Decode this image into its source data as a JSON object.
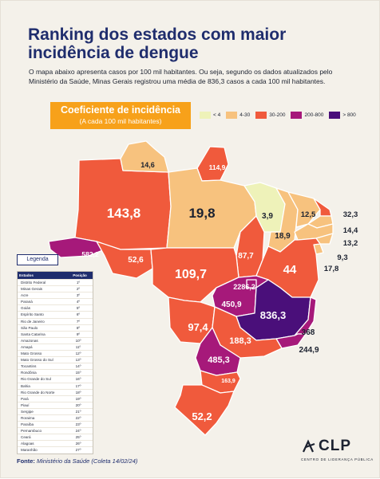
{
  "header": {
    "title_line1": "Ranking dos estados com maior",
    "title_line2": "incidência de dengue",
    "intro_line1": "O mapa abaixo apresenta casos por 100 mil habitantes. Ou seja, segundo os dados atualizados pelo",
    "intro_line2": "Ministério da Saúde, Minas Gerais registrou uma média de 836,3 casos a cada 100 mil habitantes."
  },
  "coefficient": {
    "title": "Coeficiente de incidência",
    "subtitle": "(A cada 100 mil habitantes)"
  },
  "scale": [
    {
      "label": "< 4",
      "color": "#eef2b9"
    },
    {
      "label": "4-30",
      "color": "#f7c27e"
    },
    {
      "label": "30-200",
      "color": "#f05a3c"
    },
    {
      "label": "200-800",
      "color": "#a6197a"
    },
    {
      "label": "> 800",
      "color": "#4a0f7a"
    }
  ],
  "map_values": {
    "roraima": "14,6",
    "amapa": "114,9",
    "amazonas": "143,8",
    "para": "19,8",
    "maranhao": "3,9",
    "ceara": "12,5",
    "rio_grande_do_norte": "32,3",
    "paraiba": "14,4",
    "pernambuco": "13,2",
    "piaui": "18,9",
    "alagoas": "9,3",
    "sergipe": "17,8",
    "acre": "582,2",
    "rondonia": "52,6",
    "mato_grosso": "109,7",
    "tocantins": "87,7",
    "bahia": "44",
    "distrito_federal": "2286,2",
    "goias": "450,9",
    "minas_gerais": "836,3",
    "mato_grosso_do_sul": "97,4",
    "sao_paulo": "188,3",
    "espirito_santo": "368",
    "rio_de_janeiro": "244,9",
    "parana": "485,3",
    "santa_catarina": "163,9",
    "rio_grande_do_sul": "52,2"
  },
  "ranking": {
    "legend_label": "Legenda",
    "header_state": "Estados",
    "header_position": "Posição",
    "rows": [
      {
        "state": "Distrito Federal",
        "pos": "1º"
      },
      {
        "state": "Minas Gerais",
        "pos": "2º"
      },
      {
        "state": "Acre",
        "pos": "3º"
      },
      {
        "state": "Paraná",
        "pos": "4º"
      },
      {
        "state": "Goiás",
        "pos": "5º"
      },
      {
        "state": "Espírito Santo",
        "pos": "6º"
      },
      {
        "state": "Rio de Janeiro",
        "pos": "7º"
      },
      {
        "state": "São Paulo",
        "pos": "8º"
      },
      {
        "state": "Santa Catarina",
        "pos": "9º"
      },
      {
        "state": "Amazonas",
        "pos": "10º"
      },
      {
        "state": "Amapá",
        "pos": "11º"
      },
      {
        "state": "Mato Grosso",
        "pos": "12º"
      },
      {
        "state": "Mato Grosso do Sul",
        "pos": "13º"
      },
      {
        "state": "Tocantins",
        "pos": "14º"
      },
      {
        "state": "Rondônia",
        "pos": "15º"
      },
      {
        "state": "Rio Grande do Sul",
        "pos": "16º"
      },
      {
        "state": "Bahia",
        "pos": "17º"
      },
      {
        "state": "Rio Grande do Norte",
        "pos": "18º"
      },
      {
        "state": "Pará",
        "pos": "19º"
      },
      {
        "state": "Piauí",
        "pos": "20º"
      },
      {
        "state": "Sergipe",
        "pos": "21º"
      },
      {
        "state": "Roraima",
        "pos": "22º"
      },
      {
        "state": "Paraíba",
        "pos": "23º"
      },
      {
        "state": "Pernambuco",
        "pos": "24º"
      },
      {
        "state": "Ceará",
        "pos": "25º"
      },
      {
        "state": "Alagoas",
        "pos": "26º"
      },
      {
        "state": "Maranhão",
        "pos": "27º"
      }
    ]
  },
  "footer": {
    "source_label": "Fonte:",
    "source_text": "Ministério da Saúde",
    "source_date": "(Coleta 14/02/24)",
    "logo_text": "CLP",
    "logo_subtitle": "CENTRO DE LIDERANÇA PÚBLICA"
  }
}
